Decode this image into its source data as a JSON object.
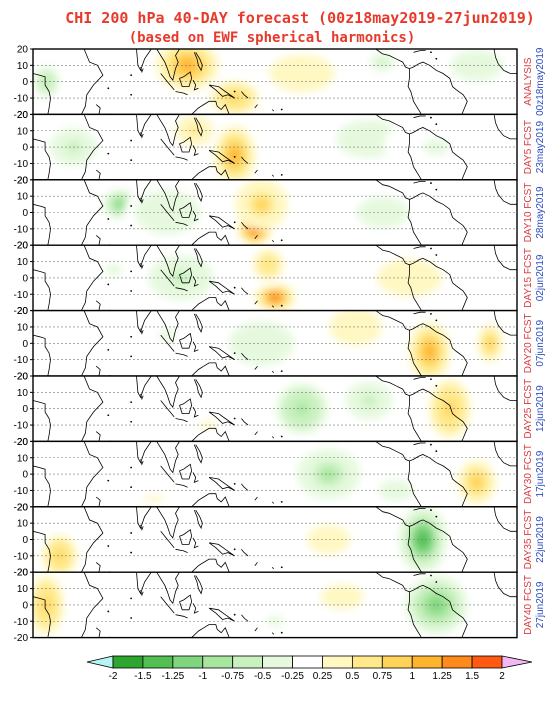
{
  "header": {
    "title": "CHI 200 hPa 40-DAY forecast (00z18may2019-27jun2019)",
    "subtitle": "(based on EWF spherical harmonics)"
  },
  "colors": {
    "title": "#e8392b",
    "side_label_red": "#d9383a",
    "side_label_blue": "#2b4cc4",
    "negative_scale": [
      "#2ea52e",
      "#52bf52",
      "#7fd67f",
      "#a8e6a0",
      "#c9f1c0",
      "#e6f9de"
    ],
    "positive_scale": [
      "#fff8c2",
      "#ffe98a",
      "#ffd25a",
      "#ffb42e",
      "#ff8a1c",
      "#ff5a12"
    ],
    "under_over": [
      "#b7f3f3",
      "#f2b8f2"
    ],
    "land_outline": "#000000"
  },
  "chart_data": {
    "type": "heatmap",
    "panels": [
      {
        "label_top": "ANALYSIS",
        "label_bottom": "00z18may2019"
      },
      {
        "label_top": "DAY5 FCST",
        "label_bottom": "23may2019"
      },
      {
        "label_top": "DAY10 FCST",
        "label_bottom": "28may2019"
      },
      {
        "label_top": "DAY15 FCST",
        "label_bottom": "02jun2019"
      },
      {
        "label_top": "DAY20 FCST",
        "label_bottom": "07jun2019"
      },
      {
        "label_top": "DAY25 FCST",
        "label_bottom": "12jun2019"
      },
      {
        "label_top": "DAY30 FCST",
        "label_bottom": "17jun2019"
      },
      {
        "label_top": "DAY35 FCST",
        "label_bottom": "22jun2019"
      },
      {
        "label_top": "DAY40 FCST",
        "label_bottom": "27jun2019"
      }
    ],
    "y_ticks": [
      20,
      10,
      0,
      -10,
      -20
    ],
    "ylim": [
      -20,
      20
    ],
    "xlim": [
      0,
      360
    ],
    "grid": "dotted latitude lines at 10S, 0, 10N",
    "colorbar": {
      "ticks": [
        "-2",
        "-1.5",
        "-1.25",
        "-1",
        "-0.75",
        "-0.5",
        "-0.25",
        "0.25",
        "0.5",
        "0.75",
        "1",
        "1.25",
        "1.5",
        "2"
      ],
      "extend": "both"
    },
    "anomalies": [
      [
        {
          "lon": 115,
          "lat": 10,
          "v": 1.1,
          "sx": 18,
          "sy": 12
        },
        {
          "lon": 150,
          "lat": -10,
          "v": 1.0,
          "sx": 14,
          "sy": 8
        },
        {
          "lon": 200,
          "lat": 5,
          "v": 0.5,
          "sx": 25,
          "sy": 12
        },
        {
          "lon": 260,
          "lat": 12,
          "v": -0.6,
          "sx": 10,
          "sy": 6
        },
        {
          "lon": 10,
          "lat": 0,
          "v": -0.8,
          "sx": 10,
          "sy": 10
        },
        {
          "lon": 330,
          "lat": 10,
          "v": -0.5,
          "sx": 20,
          "sy": 10
        }
      ],
      [
        {
          "lon": 150,
          "lat": -5,
          "v": 1.3,
          "sx": 12,
          "sy": 14
        },
        {
          "lon": 120,
          "lat": 10,
          "v": 0.6,
          "sx": 15,
          "sy": 10
        },
        {
          "lon": 30,
          "lat": 0,
          "v": -0.6,
          "sx": 18,
          "sy": 12
        },
        {
          "lon": 250,
          "lat": 5,
          "v": -0.5,
          "sx": 25,
          "sy": 12
        },
        {
          "lon": 300,
          "lat": 0,
          "v": -0.3,
          "sx": 30,
          "sy": 15
        }
      ],
      [
        {
          "lon": 165,
          "lat": -10,
          "v": 1.6,
          "sx": 10,
          "sy": 8
        },
        {
          "lon": 170,
          "lat": 5,
          "v": 0.9,
          "sx": 15,
          "sy": 12
        },
        {
          "lon": 65,
          "lat": 5,
          "v": -1.1,
          "sx": 10,
          "sy": 7
        },
        {
          "lon": 100,
          "lat": 0,
          "v": -0.5,
          "sx": 25,
          "sy": 14
        },
        {
          "lon": 260,
          "lat": 0,
          "v": -0.4,
          "sx": 30,
          "sy": 15
        }
      ],
      [
        {
          "lon": 180,
          "lat": -12,
          "v": 1.4,
          "sx": 12,
          "sy": 7
        },
        {
          "lon": 175,
          "lat": 8,
          "v": 0.7,
          "sx": 12,
          "sy": 10
        },
        {
          "lon": 110,
          "lat": 0,
          "v": -0.6,
          "sx": 25,
          "sy": 14
        },
        {
          "lon": 280,
          "lat": 0,
          "v": 0.5,
          "sx": 25,
          "sy": 12
        },
        {
          "lon": 60,
          "lat": 5,
          "v": -0.3,
          "sx": 20,
          "sy": 12
        }
      ],
      [
        {
          "lon": 295,
          "lat": -5,
          "v": 1.2,
          "sx": 12,
          "sy": 14
        },
        {
          "lon": 240,
          "lat": 10,
          "v": 0.5,
          "sx": 20,
          "sy": 12
        },
        {
          "lon": 170,
          "lat": 0,
          "v": -0.5,
          "sx": 25,
          "sy": 14
        },
        {
          "lon": 100,
          "lat": 5,
          "v": -0.3,
          "sx": 20,
          "sy": 12
        },
        {
          "lon": 340,
          "lat": 0,
          "v": 0.8,
          "sx": 10,
          "sy": 12
        }
      ],
      [
        {
          "lon": 200,
          "lat": 0,
          "v": -1.0,
          "sx": 15,
          "sy": 12
        },
        {
          "lon": 310,
          "lat": 0,
          "v": 1.0,
          "sx": 12,
          "sy": 14
        },
        {
          "lon": 250,
          "lat": 5,
          "v": -0.6,
          "sx": 18,
          "sy": 12
        },
        {
          "lon": 130,
          "lat": -10,
          "v": 0.3,
          "sx": 20,
          "sy": 8
        }
      ],
      [
        {
          "lon": 220,
          "lat": 0,
          "v": -0.9,
          "sx": 18,
          "sy": 12
        },
        {
          "lon": 330,
          "lat": -5,
          "v": 0.8,
          "sx": 15,
          "sy": 14
        },
        {
          "lon": 90,
          "lat": -15,
          "v": 0.3,
          "sx": 25,
          "sy": 6
        },
        {
          "lon": 270,
          "lat": -10,
          "v": -0.4,
          "sx": 20,
          "sy": 10
        }
      ],
      [
        {
          "lon": 290,
          "lat": 0,
          "v": -1.4,
          "sx": 14,
          "sy": 16
        },
        {
          "lon": 20,
          "lat": -10,
          "v": 1.0,
          "sx": 10,
          "sy": 10
        },
        {
          "lon": 220,
          "lat": 0,
          "v": 0.4,
          "sx": 25,
          "sy": 14
        },
        {
          "lon": 130,
          "lat": 0,
          "v": 0.2,
          "sx": 25,
          "sy": 14
        }
      ],
      [
        {
          "lon": 300,
          "lat": 0,
          "v": -1.2,
          "sx": 18,
          "sy": 14
        },
        {
          "lon": 10,
          "lat": 0,
          "v": 1.0,
          "sx": 10,
          "sy": 14
        },
        {
          "lon": 230,
          "lat": 5,
          "v": 0.4,
          "sx": 25,
          "sy": 12
        },
        {
          "lon": 180,
          "lat": -10,
          "v": -0.3,
          "sx": 20,
          "sy": 10
        }
      ]
    ]
  }
}
